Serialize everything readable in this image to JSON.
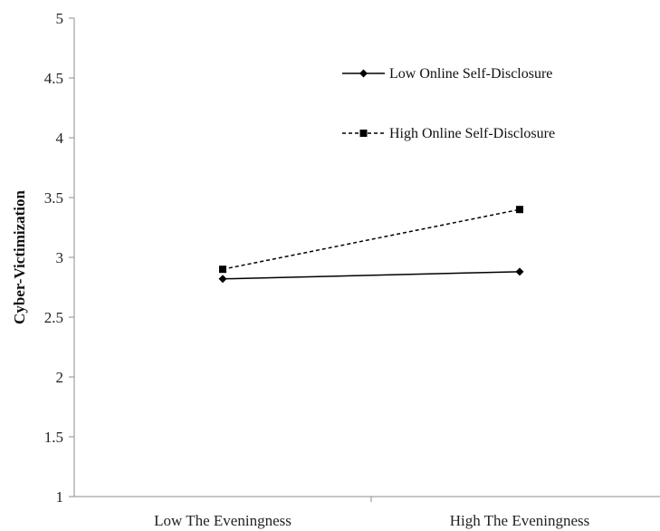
{
  "chart_data": {
    "type": "line",
    "title": "",
    "xlabel": "",
    "ylabel": "Cyber-Victimization",
    "categories": [
      "Low The Eveningness",
      "High The Eveningness"
    ],
    "ylim": [
      1,
      5
    ],
    "yticks": [
      "1",
      "1.5",
      "2",
      "2.5",
      "3",
      "3.5",
      "4",
      "4.5",
      "5"
    ],
    "grid": false,
    "legend_position": "top-right",
    "series": [
      {
        "name": "Low Online Self-Disclosure",
        "values": [
          2.82,
          2.88
        ],
        "line_style": "solid",
        "marker": "diamond",
        "color": "#000000"
      },
      {
        "name": "High Online Self-Disclosure",
        "values": [
          2.9,
          3.4
        ],
        "line_style": "dashed",
        "marker": "square",
        "color": "#000000"
      }
    ]
  }
}
